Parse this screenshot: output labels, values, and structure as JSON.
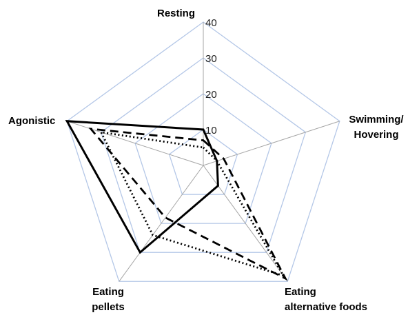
{
  "chart_data": {
    "type": "radar",
    "categories": [
      [
        "Resting"
      ],
      [
        "Swimming/",
        "Hovering"
      ],
      [
        "Eating",
        "alternative foods"
      ],
      [
        "Eating",
        "pellets"
      ],
      [
        "Agonistic"
      ]
    ],
    "rlim": [
      0,
      40
    ],
    "ticks": [
      10,
      20,
      30,
      40
    ],
    "tick_labels": [
      "10",
      "20",
      "30",
      "40"
    ],
    "grid": true,
    "legend": "none",
    "colors": {
      "grid_ring": "#b4c7e7",
      "grid_spoke": "#a6a6a6",
      "series": "#000000"
    },
    "series": [
      {
        "style": "solid",
        "values": [
          10,
          4,
          7,
          30,
          40
        ]
      },
      {
        "style": "dashed",
        "values": [
          7,
          6,
          39,
          18,
          33
        ]
      },
      {
        "style": "dotted",
        "values": [
          5,
          4,
          38,
          24,
          30
        ]
      }
    ]
  }
}
